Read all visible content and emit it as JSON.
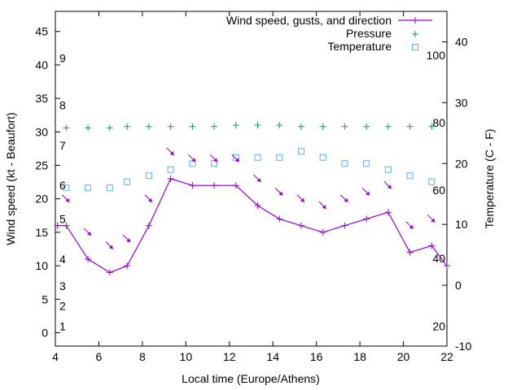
{
  "chart_data": {
    "type": "line",
    "xlabel": "Local time (Europe/Athens)",
    "ylabel_left": "Wind speed (kt - Beaufort)",
    "ylabel_right": "Temperature (C - F)",
    "x_range": [
      4,
      22
    ],
    "y_left_range": [
      -2,
      48
    ],
    "y_right_range": [
      -10,
      45
    ],
    "x_ticks": [
      4,
      6,
      8,
      10,
      12,
      14,
      16,
      18,
      20,
      22
    ],
    "y_left_ticks": [
      0,
      5,
      10,
      15,
      20,
      25,
      30,
      35,
      40,
      45
    ],
    "y_right_ticks": [
      -10,
      0,
      10,
      20,
      30,
      40
    ],
    "beaufort_labels": [
      {
        "text": "1",
        "kt": 1
      },
      {
        "text": "2",
        "kt": 4
      },
      {
        "text": "3",
        "kt": 7
      },
      {
        "text": "4",
        "kt": 11
      },
      {
        "text": "5",
        "kt": 17
      },
      {
        "text": "6",
        "kt": 22
      },
      {
        "text": "7",
        "kt": 28
      },
      {
        "text": "8",
        "kt": 34
      },
      {
        "text": "9",
        "kt": 41
      }
    ],
    "fahrenheit_labels": [
      {
        "text": "20",
        "temp_c": -6.7
      },
      {
        "text": "40",
        "temp_c": 4.4
      },
      {
        "text": "60",
        "temp_c": 15.6
      },
      {
        "text": "80",
        "temp_c": 26.7
      },
      {
        "text": "100",
        "temp_c": 37.8
      }
    ],
    "series": [
      {
        "name": "Wind speed, gusts, and direction",
        "color": "#9400d3",
        "x": [
          4.1,
          4.5,
          5.5,
          6.5,
          7.3,
          8.3,
          9.3,
          10.3,
          11.3,
          12.3,
          13.3,
          14.3,
          15.3,
          16.3,
          17.3,
          18.3,
          19.3,
          20.3,
          21.3,
          22
        ],
        "values": [
          16,
          16,
          11,
          9,
          10,
          16,
          23,
          22,
          22,
          22,
          19,
          17,
          16,
          15,
          16,
          17,
          18,
          12,
          13,
          10
        ]
      },
      {
        "name": "Pressure",
        "color": "#009e73",
        "x": [
          4.5,
          5.5,
          6.5,
          7.3,
          8.3,
          9.3,
          10.3,
          11.3,
          12.3,
          13.3,
          14.3,
          15.3,
          16.3,
          17.3,
          18.3,
          19.3,
          20.3,
          21.3
        ],
        "values": [
          30.6,
          30.6,
          30.6,
          30.8,
          30.8,
          30.8,
          30.8,
          30.8,
          31.0,
          31.0,
          31.0,
          30.8,
          30.8,
          30.8,
          30.8,
          30.8,
          30.8,
          30.8
        ]
      },
      {
        "name": "Temperature",
        "color": "#56b4e9",
        "x": [
          4.5,
          5.5,
          6.5,
          7.3,
          8.3,
          9.3,
          10.3,
          11.3,
          12.3,
          13.3,
          14.3,
          15.3,
          16.3,
          17.3,
          18.3,
          19.3,
          20.3,
          21.3
        ],
        "values": [
          16,
          16,
          16,
          17,
          18,
          19,
          20,
          20,
          21,
          21,
          21,
          22,
          21,
          20,
          20,
          19,
          18,
          17
        ]
      }
    ],
    "direction_arrows": {
      "color": "#9400d3",
      "x": [
        4.5,
        5.5,
        6.5,
        7.3,
        8.3,
        9.3,
        10.3,
        11.3,
        12.3,
        13.3,
        14.3,
        15.3,
        16.3,
        17.3,
        18.3,
        19.3,
        20.3,
        21.3
      ],
      "values": [
        20,
        15,
        13,
        14,
        20,
        27,
        26,
        26,
        26,
        23,
        21,
        20,
        19,
        20,
        21,
        22,
        16,
        17
      ]
    },
    "legend_position": "top-right"
  }
}
